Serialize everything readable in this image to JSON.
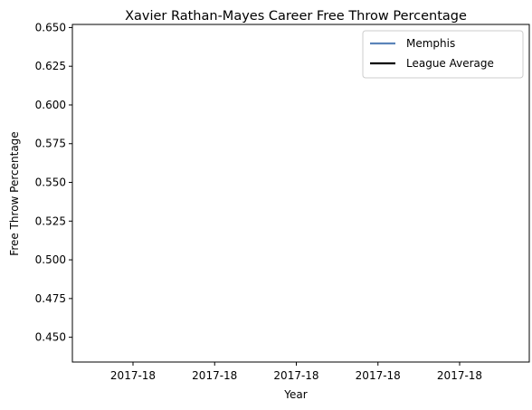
{
  "chart_data": {
    "type": "line",
    "title": "Xavier Rathan-Mayes Career Free Throw Percentage",
    "xlabel": "Year",
    "ylabel": "Free Throw Percentage",
    "x_tick_labels": [
      "2017-18",
      "2017-18",
      "2017-18",
      "2017-18",
      "2017-18"
    ],
    "y_ticks": [
      0.45,
      0.475,
      0.5,
      0.525,
      0.55,
      0.575,
      0.6,
      0.625,
      0.65
    ],
    "y_tick_labels": [
      "0.450",
      "0.475",
      "0.500",
      "0.525",
      "0.550",
      "0.575",
      "0.600",
      "0.625",
      "0.650"
    ],
    "ylim": [
      0.434,
      0.652
    ],
    "grid": false,
    "legend_position": "top-right",
    "series": [
      {
        "name": "Memphis",
        "color": "#5b84b9",
        "x": [],
        "y": []
      },
      {
        "name": "League Average",
        "color": "#000000",
        "x": [],
        "y": []
      }
    ]
  }
}
